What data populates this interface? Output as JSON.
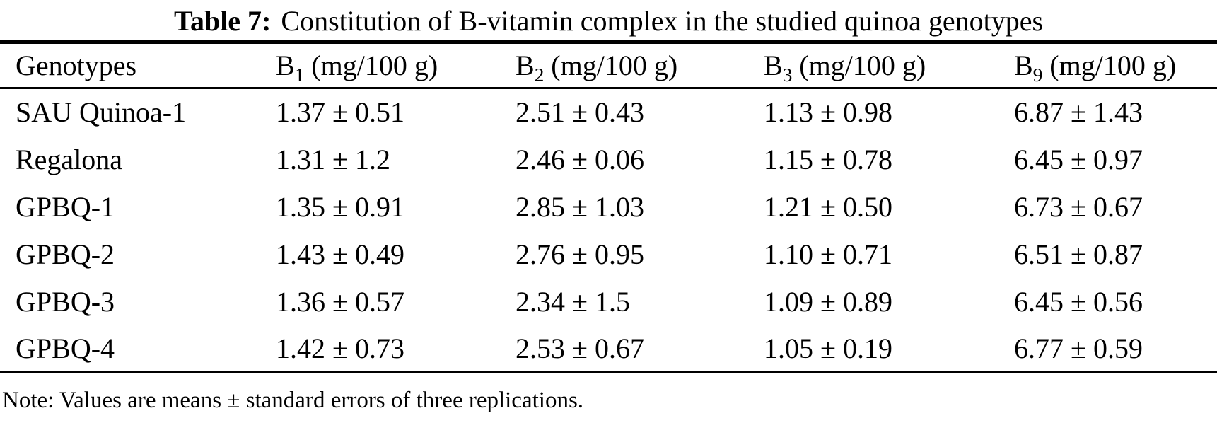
{
  "caption": {
    "label": "Table 7:",
    "text": "Constitution of B-vitamin complex in the studied quinoa genotypes"
  },
  "table": {
    "columns": [
      {
        "base": "Genotypes",
        "sub": "",
        "rest": ""
      },
      {
        "base": "B",
        "sub": "1",
        "rest": " (mg/100 g)"
      },
      {
        "base": "B",
        "sub": "2",
        "rest": " (mg/100 g)"
      },
      {
        "base": "B",
        "sub": "3",
        "rest": " (mg/100 g)"
      },
      {
        "base": "B",
        "sub": "9",
        "rest": " (mg/100 g)"
      }
    ],
    "rows": [
      {
        "genotype": "SAU Quinoa-1",
        "b1": "1.37 ± 0.51",
        "b2": "2.51 ± 0.43",
        "b3": "1.13 ± 0.98",
        "b9": "6.87 ± 1.43"
      },
      {
        "genotype": "Regalona",
        "b1": "1.31 ± 1.2",
        "b2": "2.46 ± 0.06",
        "b3": "1.15 ± 0.78",
        "b9": "6.45 ± 0.97"
      },
      {
        "genotype": "GPBQ-1",
        "b1": "1.35 ± 0.91",
        "b2": "2.85 ± 1.03",
        "b3": "1.21 ± 0.50",
        "b9": "6.73 ± 0.67"
      },
      {
        "genotype": "GPBQ-2",
        "b1": "1.43 ± 0.49",
        "b2": "2.76 ± 0.95",
        "b3": "1.10 ± 0.71",
        "b9": "6.51 ± 0.87"
      },
      {
        "genotype": "GPBQ-3",
        "b1": "1.36 ± 0.57",
        "b2": "2.34 ± 1.5",
        "b3": "1.09 ± 0.89",
        "b9": "6.45 ± 0.56"
      },
      {
        "genotype": "GPBQ-4",
        "b1": "1.42 ± 0.73",
        "b2": "2.53 ± 0.67",
        "b3": "1.05 ± 0.19",
        "b9": "6.77 ± 0.59"
      }
    ]
  },
  "note": "Note: Values are means ± standard errors of three replications.",
  "colors": {
    "text": "#000000",
    "background": "#ffffff",
    "rule": "#000000"
  }
}
